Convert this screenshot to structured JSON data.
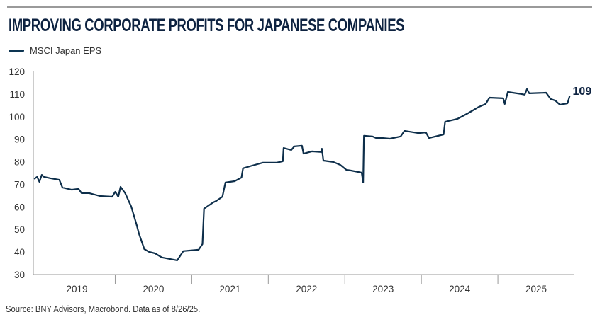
{
  "title": "IMPROVING CORPORATE PROFITS FOR JAPANESE COMPANIES",
  "source": "Source: BNY Advisors, Macrobond. Data as of 8/26/25.",
  "colors": {
    "line": "#0d2e4a",
    "title": "#0d2240",
    "axis": "#9a9a9a"
  },
  "chart_data": {
    "type": "line",
    "title": "IMPROVING CORPORATE PROFITS FOR JAPANESE COMPANIES",
    "xlabel": "",
    "ylabel": "",
    "ylim": [
      30,
      120
    ],
    "xlim": [
      2018.93,
      2026.0
    ],
    "yticks": [
      "30",
      "40",
      "50",
      "60",
      "70",
      "80",
      "90",
      "100",
      "110",
      "120"
    ],
    "xtick_labels": [
      "2019",
      "2020",
      "2021",
      "2022",
      "2023",
      "2024",
      "2025"
    ],
    "grid": false,
    "legend": {
      "position": "top-left",
      "entries": [
        "MSCI Japan EPS"
      ]
    },
    "end_label": "109",
    "series": [
      {
        "name": "MSCI Japan EPS",
        "x": [
          2018.94,
          2018.98,
          2019.01,
          2019.04,
          2019.07,
          2019.15,
          2019.27,
          2019.31,
          2019.43,
          2019.52,
          2019.56,
          2019.66,
          2019.8,
          2019.96,
          2020.0,
          2020.04,
          2020.07,
          2020.13,
          2020.21,
          2020.28,
          2020.31,
          2020.38,
          2020.44,
          2020.52,
          2020.61,
          2020.81,
          2020.89,
          2021.09,
          2021.14,
          2021.16,
          2021.28,
          2021.32,
          2021.4,
          2021.44,
          2021.56,
          2021.65,
          2021.67,
          2021.79,
          2021.93,
          2022.11,
          2022.19,
          2022.2,
          2022.3,
          2022.34,
          2022.44,
          2022.46,
          2022.57,
          2022.69,
          2022.7,
          2022.72,
          2022.85,
          2022.94,
          2023.02,
          2023.08,
          2023.22,
          2023.24,
          2023.25,
          2023.36,
          2023.41,
          2023.5,
          2023.59,
          2023.73,
          2023.78,
          2023.96,
          2024.06,
          2024.1,
          2024.29,
          2024.31,
          2024.47,
          2024.61,
          2024.75,
          2024.84,
          2024.89,
          2025.07,
          2025.09,
          2025.13,
          2025.31,
          2025.35,
          2025.38,
          2025.41,
          2025.63,
          2025.69,
          2025.75,
          2025.81,
          2025.91,
          2025.94
        ],
        "y": [
          72.4,
          73.3,
          71.1,
          74.2,
          73.3,
          72.7,
          72.0,
          68.6,
          67.6,
          68.0,
          66.1,
          66.1,
          64.8,
          64.5,
          66.7,
          64.5,
          68.9,
          66.1,
          60.1,
          52.0,
          48.2,
          41.3,
          40.1,
          39.4,
          37.6,
          36.3,
          40.4,
          41.0,
          43.5,
          59.2,
          62.0,
          62.6,
          64.5,
          70.8,
          71.4,
          73.0,
          77.1,
          78.3,
          79.6,
          79.6,
          80.2,
          86.1,
          85.2,
          86.8,
          87.1,
          83.6,
          84.6,
          84.3,
          85.8,
          80.5,
          79.9,
          78.6,
          76.4,
          76.1,
          75.2,
          70.8,
          91.5,
          91.2,
          90.5,
          90.5,
          90.2,
          91.2,
          93.7,
          92.7,
          93.0,
          90.5,
          92.1,
          97.7,
          99.0,
          101.5,
          104.3,
          105.6,
          108.4,
          108.1,
          105.6,
          110.9,
          110.0,
          109.7,
          112.2,
          110.3,
          110.6,
          107.8,
          107.1,
          105.3,
          105.9,
          109.3
        ]
      }
    ]
  }
}
